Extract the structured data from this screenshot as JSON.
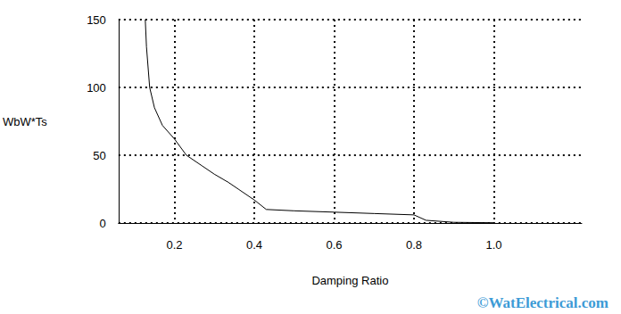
{
  "chart_data": {
    "type": "line",
    "x_label": "Damping Ratio",
    "y_label": "WbW*Ts",
    "annotations": [
      "©WatElectrical.com"
    ],
    "x": [
      0.127,
      0.13,
      0.138,
      0.15,
      0.17,
      0.2,
      0.23,
      0.27,
      0.3,
      0.335,
      0.36,
      0.4,
      0.43,
      0.5,
      0.6,
      0.7,
      0.8,
      0.83,
      0.9,
      1.0
    ],
    "values": [
      150,
      130,
      100,
      85,
      72,
      62,
      50,
      42,
      36,
      30,
      25,
      17,
      10,
      9,
      8,
      7,
      6,
      2,
      0.5,
      0.2
    ],
    "color": "#000000",
    "xlim": [
      0.06,
      1.22
    ],
    "xticks": [
      0.2,
      0.4,
      0.6,
      0.8,
      {
        "value": 1,
        "label": "1.0"
      }
    ],
    "ylim": [
      0,
      150
    ],
    "yticks": [
      0,
      50,
      100,
      150
    ],
    "grid": true
  }
}
